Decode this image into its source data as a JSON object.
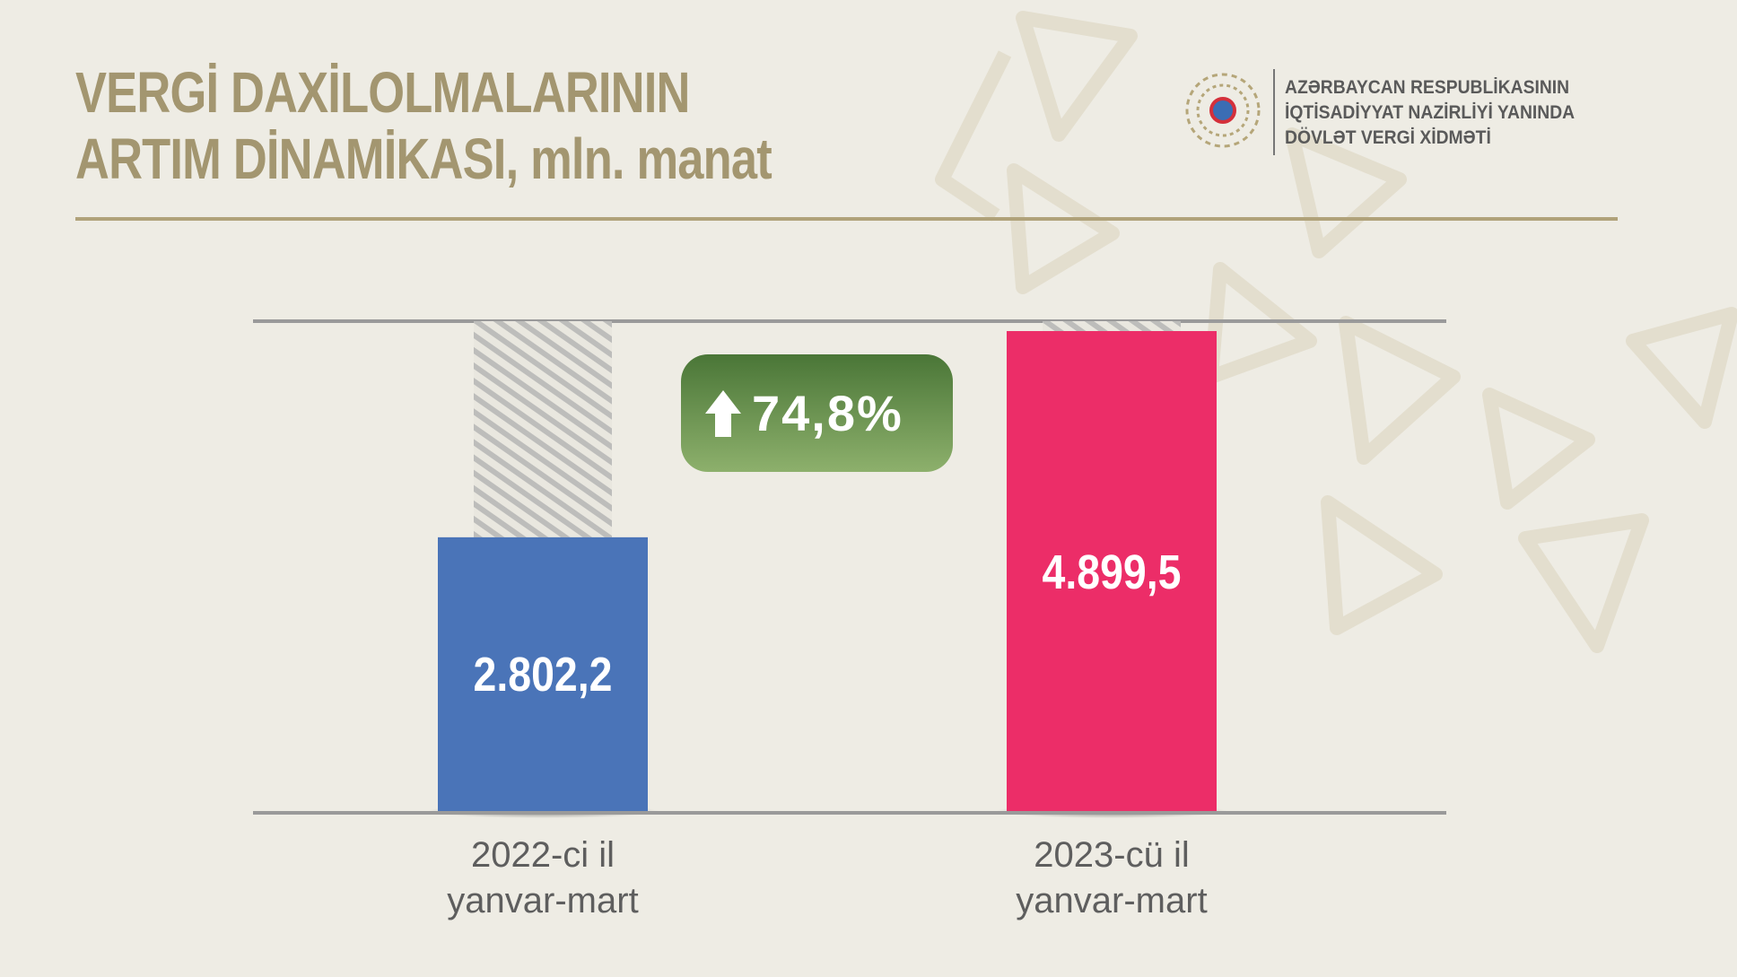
{
  "header": {
    "organization": "AZƏRBAYCAN RESPUBLİKASININ\nİQTİSADİYYAT NAZİRLİYİ YANINDA\nDÖVLƏT VERGİ XİDMƏTİ"
  },
  "chart_data": {
    "type": "bar",
    "title": "VERGİ DAXİLOLMALARININ\nARTIM DİNAMİKASI, mln. manat",
    "categories": [
      "2022-ci il\nyanvar-mart",
      "2023-cü il\nyanvar-mart"
    ],
    "values": [
      2802.2,
      4899.5
    ],
    "value_labels": [
      "2.802,2",
      "4.899,5"
    ],
    "colors": [
      "#4a74b8",
      "#ec2d68"
    ],
    "ylim": [
      0,
      5000
    ],
    "annotation": "74,8%"
  }
}
